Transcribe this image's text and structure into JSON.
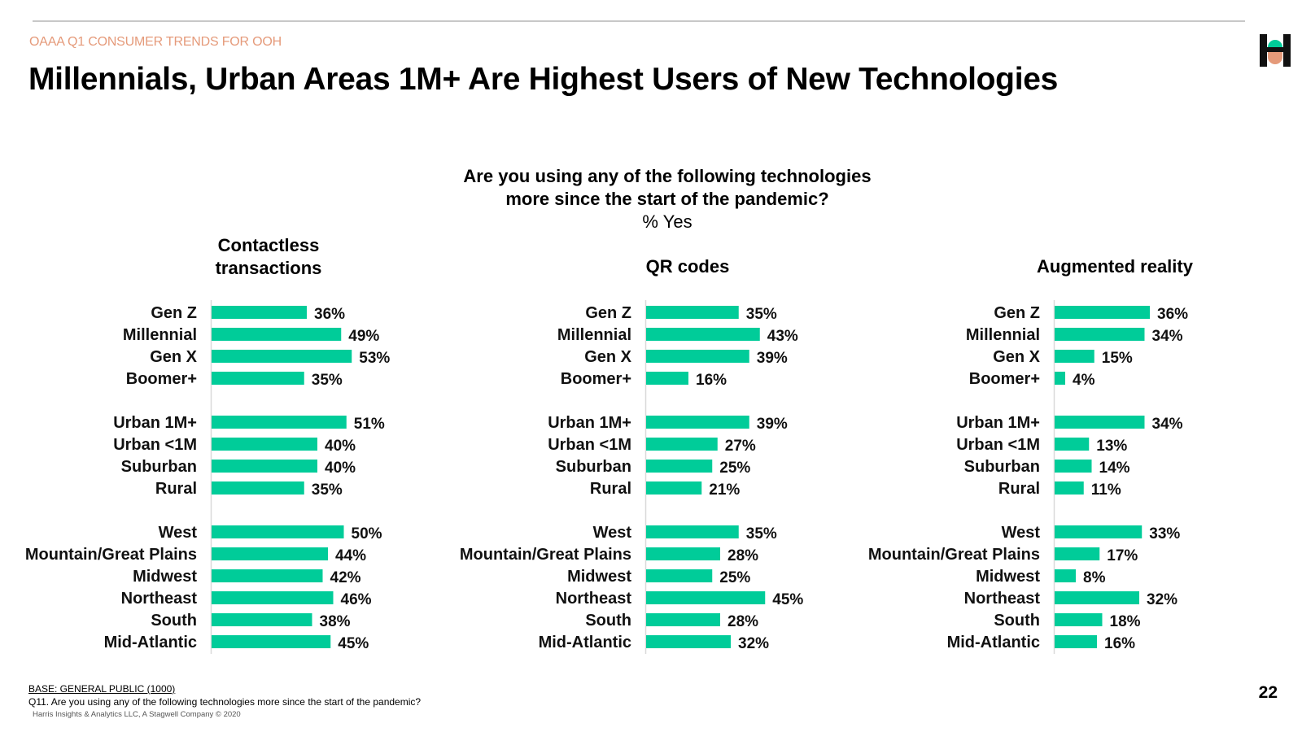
{
  "header": {
    "eyebrow": "OAAA Q1 CONSUMER TRENDS FOR OOH",
    "title": "Millennials, Urban Areas 1M+ Are Highest Users of New Technologies"
  },
  "question": {
    "line1": "Are you using any of the following technologies",
    "line2": "more since the start of the pandemic?",
    "sub": "% Yes"
  },
  "footer": {
    "base": "BASE: GENERAL PUBLIC (1000)",
    "question_note": "Q11. Are you using any of the following technologies more since the start of the pandemic?",
    "copyright": "Harris Insights & Analytics LLC, A Stagwell Company © 2020",
    "page_number": "22"
  },
  "colors": {
    "bar": "#00cc99",
    "accent": "#e59a7a"
  },
  "chart_data": [
    {
      "type": "bar",
      "orientation": "horizontal",
      "title": "Contactless transactions",
      "categories": [
        "Gen Z",
        "Millennial",
        "Gen X",
        "Boomer+",
        "Urban 1M+",
        "Urban <1M",
        "Suburban",
        "Rural",
        "West",
        "Mountain/Great Plains",
        "Midwest",
        "Northeast",
        "South",
        "Mid-Atlantic"
      ],
      "values": [
        36,
        49,
        53,
        35,
        51,
        40,
        40,
        35,
        50,
        44,
        42,
        46,
        38,
        45
      ],
      "value_labels": [
        "36%",
        "49%",
        "53%",
        "35%",
        "51%",
        "40%",
        "40%",
        "35%",
        "50%",
        "44%",
        "42%",
        "46%",
        "38%",
        "45%"
      ],
      "unit": "%"
    },
    {
      "type": "bar",
      "orientation": "horizontal",
      "title": "QR codes",
      "categories": [
        "Gen Z",
        "Millennial",
        "Gen X",
        "Boomer+",
        "Urban 1M+",
        "Urban <1M",
        "Suburban",
        "Rural",
        "West",
        "Mountain/Great Plains",
        "Midwest",
        "Northeast",
        "South",
        "Mid-Atlantic"
      ],
      "values": [
        35,
        43,
        39,
        16,
        39,
        27,
        25,
        21,
        35,
        28,
        25,
        45,
        28,
        32
      ],
      "value_labels": [
        "35%",
        "43%",
        "39%",
        "16%",
        "39%",
        "27%",
        "25%",
        "21%",
        "35%",
        "28%",
        "25%",
        "45%",
        "28%",
        "32%"
      ],
      "unit": "%"
    },
    {
      "type": "bar",
      "orientation": "horizontal",
      "title": "Augmented reality",
      "categories": [
        "Gen Z",
        "Millennial",
        "Gen X",
        "Boomer+",
        "Urban 1M+",
        "Urban <1M",
        "Suburban",
        "Rural",
        "West",
        "Mountain/Great Plains",
        "Midwest",
        "Northeast",
        "South",
        "Mid-Atlantic"
      ],
      "values": [
        36,
        34,
        15,
        4,
        34,
        13,
        14,
        11,
        33,
        17,
        8,
        32,
        18,
        16
      ],
      "value_labels": [
        "36%",
        "34%",
        "15%",
        "4%",
        "34%",
        "13%",
        "14%",
        "11%",
        "33%",
        "17%",
        "8%",
        "32%",
        "18%",
        "16%"
      ],
      "unit": "%"
    }
  ]
}
